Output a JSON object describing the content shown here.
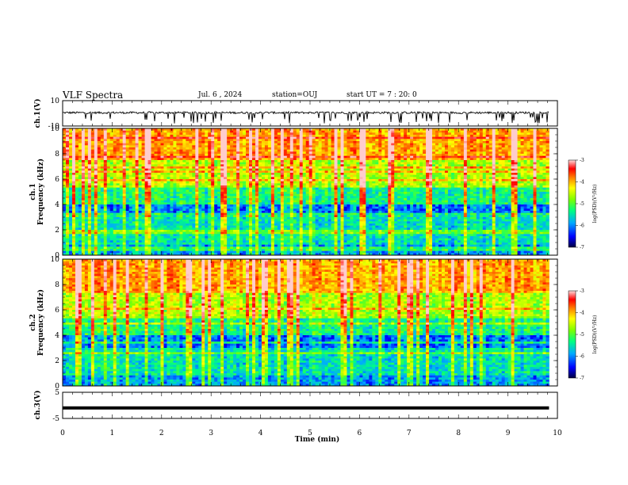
{
  "header": {
    "title": "VLF Spectra",
    "date": "Jul. 6 , 2024",
    "station": "station=OUJ",
    "start": "start UT =  7 : 20: 0"
  },
  "chart_data": [
    {
      "type": "line",
      "name": "ch1-waveform",
      "ylabel": "ch.1(V)",
      "ylim": [
        -10,
        10
      ],
      "yticks": [
        "10",
        "-10"
      ],
      "x_range_min": [
        0,
        9.83
      ],
      "baseline_v": 0.5,
      "spike_depth_v": -3
    },
    {
      "type": "heatmap",
      "name": "ch1-spectrogram",
      "ylabel": "ch.1 Frequency (kHz)",
      "ylim": [
        0,
        10
      ],
      "yticks": [
        "0",
        "2",
        "4",
        "6",
        "8",
        "10"
      ],
      "x_range_min": [
        0,
        9.83
      ],
      "colorbar": {
        "label": "log(PSD)(V²/Hz)",
        "ticks": [
          "-3",
          "-4",
          "-5",
          "-6",
          "-7"
        ],
        "range": [
          -7,
          -3
        ]
      }
    },
    {
      "type": "heatmap",
      "name": "ch2-spectrogram",
      "ylabel": "ch.2 Frequency (kHz)",
      "ylim": [
        0,
        10
      ],
      "yticks": [
        "0",
        "2",
        "4",
        "6",
        "8",
        "10"
      ],
      "x_range_min": [
        0,
        9.83
      ],
      "colorbar": {
        "label": "log(PSD)(V²/Hz)",
        "ticks": [
          "-3",
          "-4",
          "-5",
          "-6",
          "-7"
        ],
        "range": [
          -7,
          -3
        ]
      }
    },
    {
      "type": "line",
      "name": "ch3-waveform",
      "ylabel": "ch.3(V)",
      "ylim": [
        -5,
        5
      ],
      "yticks": [
        "5",
        "-5"
      ],
      "x_range_min": [
        0,
        9.83
      ],
      "baseline_v": -1
    }
  ],
  "xaxis": {
    "label": "Time (min)",
    "ticks": [
      "0",
      "1",
      "2",
      "3",
      "4",
      "5",
      "6",
      "7",
      "8",
      "9",
      "10"
    ],
    "range": [
      0,
      10
    ]
  },
  "colors": {
    "colormap": [
      "#000080",
      "#0000ff",
      "#00aaff",
      "#00ff80",
      "#80ff00",
      "#ffff00",
      "#ff8000",
      "#ff0000",
      "#ffcccc"
    ]
  }
}
